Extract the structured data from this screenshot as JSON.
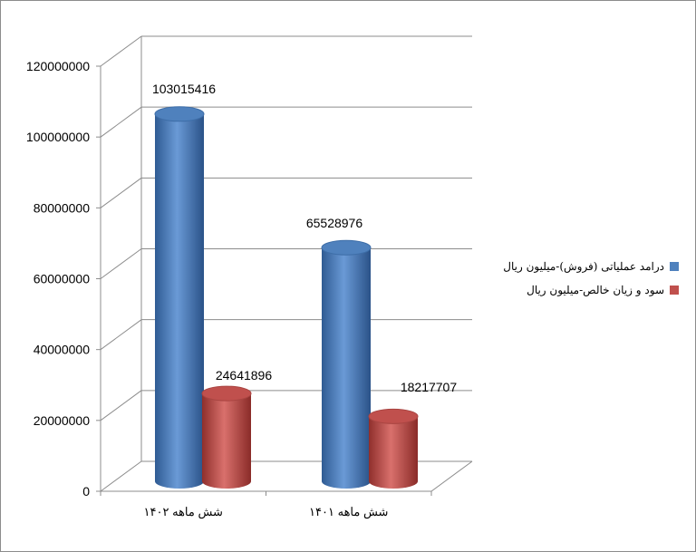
{
  "chart_data": {
    "type": "bar",
    "style": "3d-cylinder",
    "categories": [
      "شش ماهه ۱۴۰۲",
      "شش ماهه ۱۴۰۱"
    ],
    "series": [
      {
        "name": "درامد عملیاتی (فروش)-میلیون ریال",
        "color": "#4f81bd",
        "values": [
          103015416,
          65528976
        ]
      },
      {
        "name": "سود و زیان خالص-میلیون ریال",
        "color": "#c0504d",
        "values": [
          24641896,
          18217707
        ]
      }
    ],
    "data_labels": [
      "103015416",
      "65528976",
      "24641896",
      "18217707"
    ],
    "yticks": [
      "0",
      "20000000",
      "40000000",
      "60000000",
      "80000000",
      "100000000",
      "120000000"
    ],
    "ylim": [
      0,
      120000000
    ],
    "grid": true,
    "legend": "right",
    "title": "",
    "xlabel": "",
    "ylabel": ""
  }
}
